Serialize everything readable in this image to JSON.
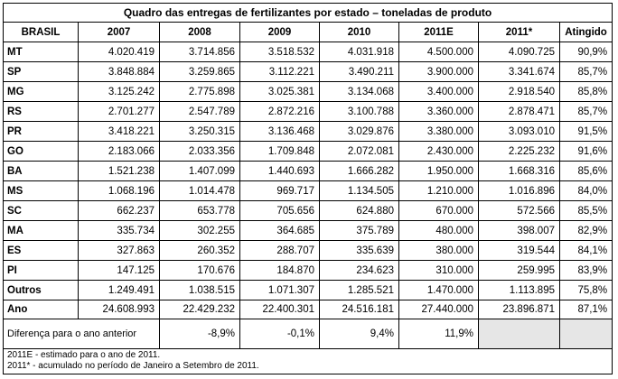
{
  "title": "Quadro das entregas de fertilizantes por estado – toneladas de produto",
  "headers": [
    "BRASIL",
    "2007",
    "2008",
    "2009",
    "2010",
    "2011E",
    "2011*",
    "Atingido"
  ],
  "rows": [
    [
      "MT",
      "4.020.419",
      "3.714.856",
      "3.518.532",
      "4.031.918",
      "4.500.000",
      "4.090.725",
      "90,9%"
    ],
    [
      "SP",
      "3.848.884",
      "3.259.865",
      "3.112.221",
      "3.490.211",
      "3.900.000",
      "3.341.674",
      "85,7%"
    ],
    [
      "MG",
      "3.125.242",
      "2.775.898",
      "3.025.381",
      "3.134.068",
      "3.400.000",
      "2.918.540",
      "85,8%"
    ],
    [
      "RS",
      "2.701.277",
      "2.547.789",
      "2.872.216",
      "3.100.788",
      "3.360.000",
      "2.878.471",
      "85,7%"
    ],
    [
      "PR",
      "3.418.221",
      "3.250.315",
      "3.136.468",
      "3.029.876",
      "3.380.000",
      "3.093.010",
      "91,5%"
    ],
    [
      "GO",
      "2.183.066",
      "2.033.356",
      "1.709.848",
      "2.072.081",
      "2.430.000",
      "2.225.232",
      "91,6%"
    ],
    [
      "BA",
      "1.521.238",
      "1.407.099",
      "1.440.693",
      "1.666.282",
      "1.950.000",
      "1.668.316",
      "85,6%"
    ],
    [
      "MS",
      "1.068.196",
      "1.014.478",
      "969.717",
      "1.134.505",
      "1.210.000",
      "1.016.896",
      "84,0%"
    ],
    [
      "SC",
      "662.237",
      "653.778",
      "705.656",
      "624.880",
      "670.000",
      "572.566",
      "85,5%"
    ],
    [
      "MA",
      "335.734",
      "302.255",
      "364.685",
      "375.789",
      "480.000",
      "398.007",
      "82,9%"
    ],
    [
      "ES",
      "327.863",
      "260.352",
      "288.707",
      "335.639",
      "380.000",
      "319.544",
      "84,1%"
    ],
    [
      "PI",
      "147.125",
      "170.676",
      "184.870",
      "234.623",
      "310.000",
      "259.995",
      "83,9%"
    ],
    [
      "Outros",
      "1.249.491",
      "1.038.515",
      "1.071.307",
      "1.285.521",
      "1.470.000",
      "1.113.895",
      "75,8%"
    ]
  ],
  "total": [
    "Ano",
    "24.608.993",
    "22.429.232",
    "22.400.301",
    "24.516.181",
    "27.440.000",
    "23.896.871",
    "87,1%"
  ],
  "diff": {
    "label": "Diferença para o  ano anterior",
    "values": [
      "",
      "-8,9%",
      "-0,1%",
      "9,4%",
      "11,9%"
    ]
  },
  "notes": [
    "2011E - estimado para o ano de 2011.",
    "2011* - acumulado no período de Janeiro a Setembro de 2011."
  ]
}
